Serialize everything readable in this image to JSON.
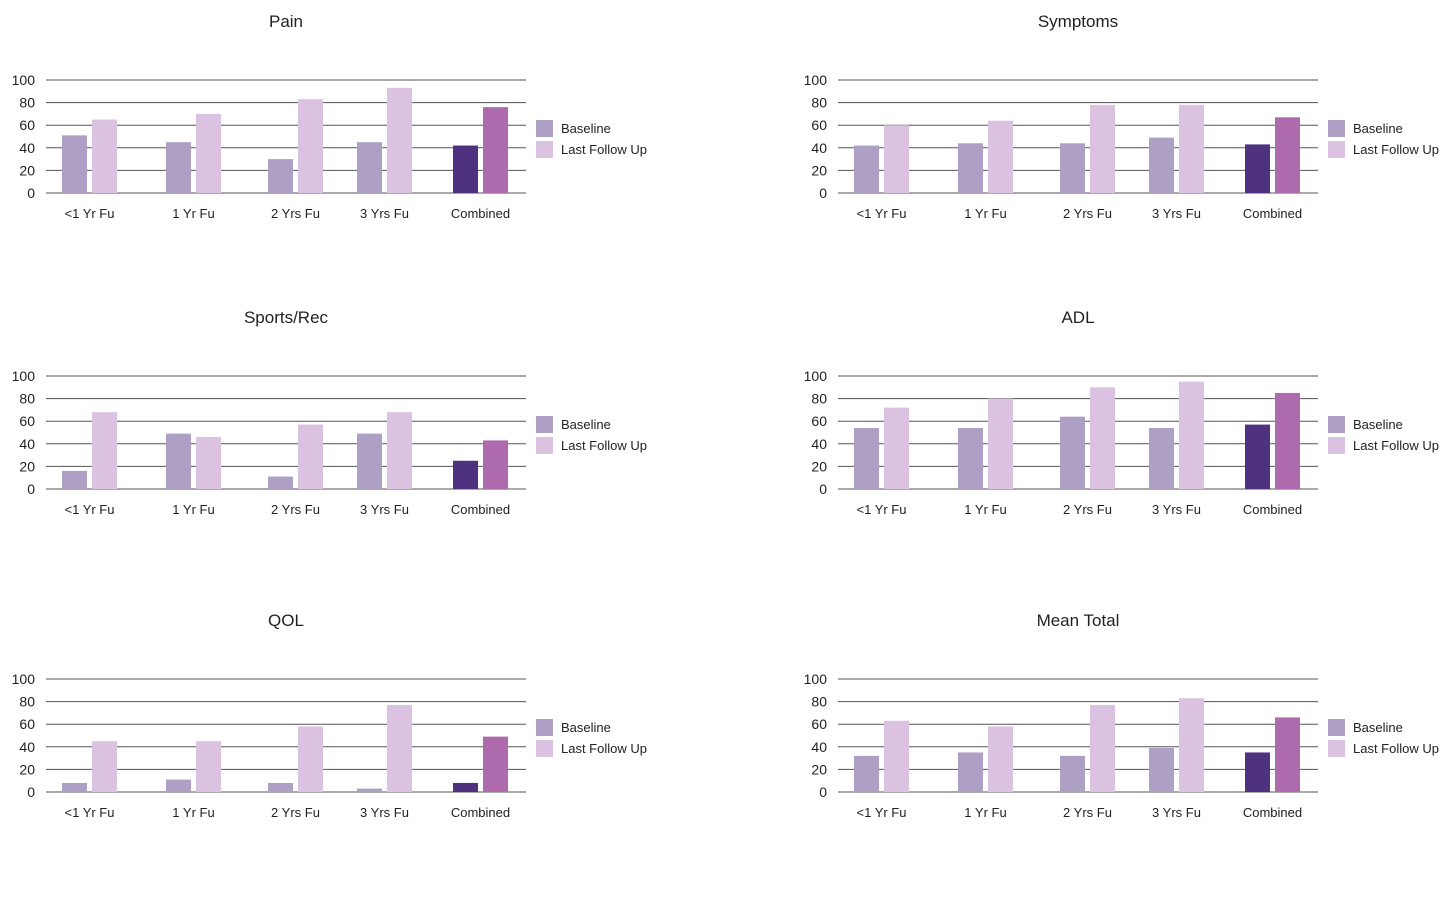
{
  "colors": {
    "baseline": "#ada0c4",
    "last_follow_up": "#dcc2e1",
    "combined_baseline": "#4e3280",
    "combined_last_follow_up": "#ad6bad",
    "grid": "#555555"
  },
  "chart_data": [
    {
      "type": "bar",
      "title": "Pain",
      "categories": [
        "<1 Yr Fu",
        "1 Yr Fu",
        "2 Yrs Fu",
        "3 Yrs Fu",
        "Combined"
      ],
      "series": [
        {
          "name": "Baseline",
          "values": [
            51,
            45,
            30,
            45,
            42
          ]
        },
        {
          "name": "Last Follow Up",
          "values": [
            65,
            70,
            83,
            93,
            76
          ]
        }
      ],
      "yticks": [
        "0",
        "20",
        "40",
        "60",
        "80",
        "100"
      ],
      "ylim": [
        0,
        100
      ],
      "legend": [
        "Baseline",
        "Last Follow Up"
      ],
      "legend_position": "right",
      "grid": true
    },
    {
      "type": "bar",
      "title": "Symptoms",
      "categories": [
        "<1 Yr Fu",
        "1 Yr Fu",
        "2 Yrs Fu",
        "3 Yrs Fu",
        "Combined"
      ],
      "series": [
        {
          "name": "Baseline",
          "values": [
            42,
            44,
            44,
            49,
            43
          ]
        },
        {
          "name": "Last Follow Up",
          "values": [
            60,
            64,
            78,
            78,
            67
          ]
        }
      ],
      "yticks": [
        "0",
        "20",
        "40",
        "60",
        "80",
        "100"
      ],
      "ylim": [
        0,
        100
      ],
      "legend": [
        "Baseline",
        "Last Follow Up"
      ],
      "legend_position": "right",
      "grid": true
    },
    {
      "type": "bar",
      "title": "Sports/Rec",
      "categories": [
        "<1 Yr Fu",
        "1 Yr Fu",
        "2 Yrs Fu",
        "3 Yrs Fu",
        "Combined"
      ],
      "series": [
        {
          "name": "Baseline",
          "values": [
            16,
            49,
            11,
            49,
            25
          ]
        },
        {
          "name": "Last Follow Up",
          "values": [
            68,
            46,
            57,
            68,
            43
          ]
        }
      ],
      "yticks": [
        "0",
        "20",
        "40",
        "60",
        "80",
        "100"
      ],
      "ylim": [
        0,
        100
      ],
      "legend": [
        "Baseline",
        "Last Follow Up"
      ],
      "legend_position": "right",
      "grid": true
    },
    {
      "type": "bar",
      "title": "ADL",
      "categories": [
        "<1 Yr Fu",
        "1 Yr Fu",
        "2 Yrs Fu",
        "3 Yrs Fu",
        "Combined"
      ],
      "series": [
        {
          "name": "Baseline",
          "values": [
            54,
            54,
            64,
            54,
            57
          ]
        },
        {
          "name": "Last Follow Up",
          "values": [
            72,
            80,
            90,
            95,
            85
          ]
        }
      ],
      "yticks": [
        "0",
        "20",
        "40",
        "60",
        "80",
        "100"
      ],
      "ylim": [
        0,
        100
      ],
      "legend": [
        "Baseline",
        "Last Follow Up"
      ],
      "legend_position": "right",
      "grid": true
    },
    {
      "type": "bar",
      "title": "QOL",
      "categories": [
        "<1 Yr Fu",
        "1 Yr Fu",
        "2 Yrs Fu",
        "3 Yrs Fu",
        "Combined"
      ],
      "series": [
        {
          "name": "Baseline",
          "values": [
            8,
            11,
            8,
            3,
            8
          ]
        },
        {
          "name": "Last Follow Up",
          "values": [
            45,
            45,
            58,
            77,
            49
          ]
        }
      ],
      "yticks": [
        "0",
        "20",
        "40",
        "60",
        "80",
        "100"
      ],
      "ylim": [
        0,
        100
      ],
      "legend": [
        "Baseline",
        "Last Follow Up"
      ],
      "legend_position": "right",
      "grid": true
    },
    {
      "type": "bar",
      "title": "Mean Total",
      "categories": [
        "<1 Yr Fu",
        "1 Yr Fu",
        "2 Yrs Fu",
        "3 Yrs Fu",
        "Combined"
      ],
      "series": [
        {
          "name": "Baseline",
          "values": [
            32,
            35,
            32,
            39,
            35
          ]
        },
        {
          "name": "Last Follow Up",
          "values": [
            63,
            58,
            77,
            83,
            66
          ]
        }
      ],
      "yticks": [
        "0",
        "20",
        "40",
        "60",
        "80",
        "100"
      ],
      "ylim": [
        0,
        100
      ],
      "legend": [
        "Baseline",
        "Last Follow Up"
      ],
      "legend_position": "right",
      "grid": true
    }
  ]
}
